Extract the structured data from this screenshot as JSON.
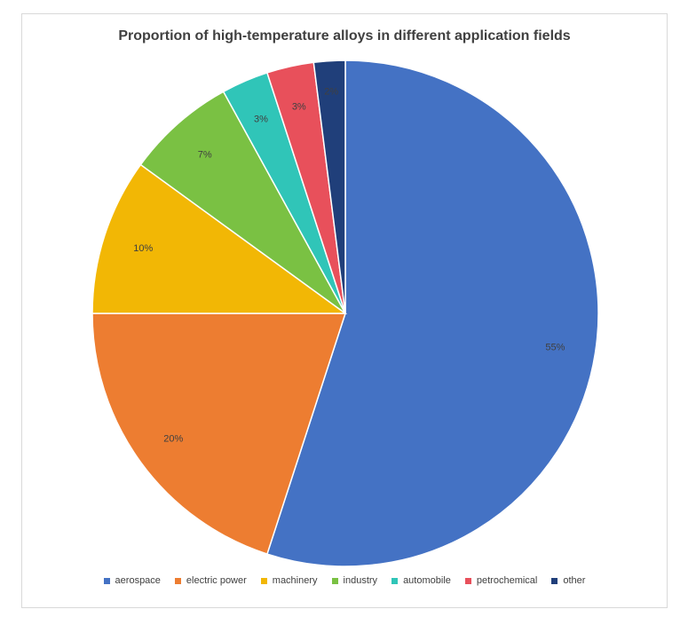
{
  "chart_data": {
    "type": "pie",
    "title": "Proportion of high-temperature alloys in different application fields",
    "categories": [
      "aerospace",
      "electric power",
      "machinery",
      "industry",
      "automobile",
      "petrochemical",
      "other"
    ],
    "values": [
      55,
      20,
      10,
      7,
      3,
      3,
      2
    ],
    "data_labels": [
      "55%",
      "20%",
      "10%",
      "7%",
      "3%",
      "3%",
      "2%"
    ],
    "colors": [
      "#4472C4",
      "#ED7D31",
      "#F2B705",
      "#7AC143",
      "#30C5B8",
      "#E8505B",
      "#203F7A"
    ],
    "legend_position": "bottom",
    "start_angle_deg": 0,
    "direction": "clockwise"
  }
}
